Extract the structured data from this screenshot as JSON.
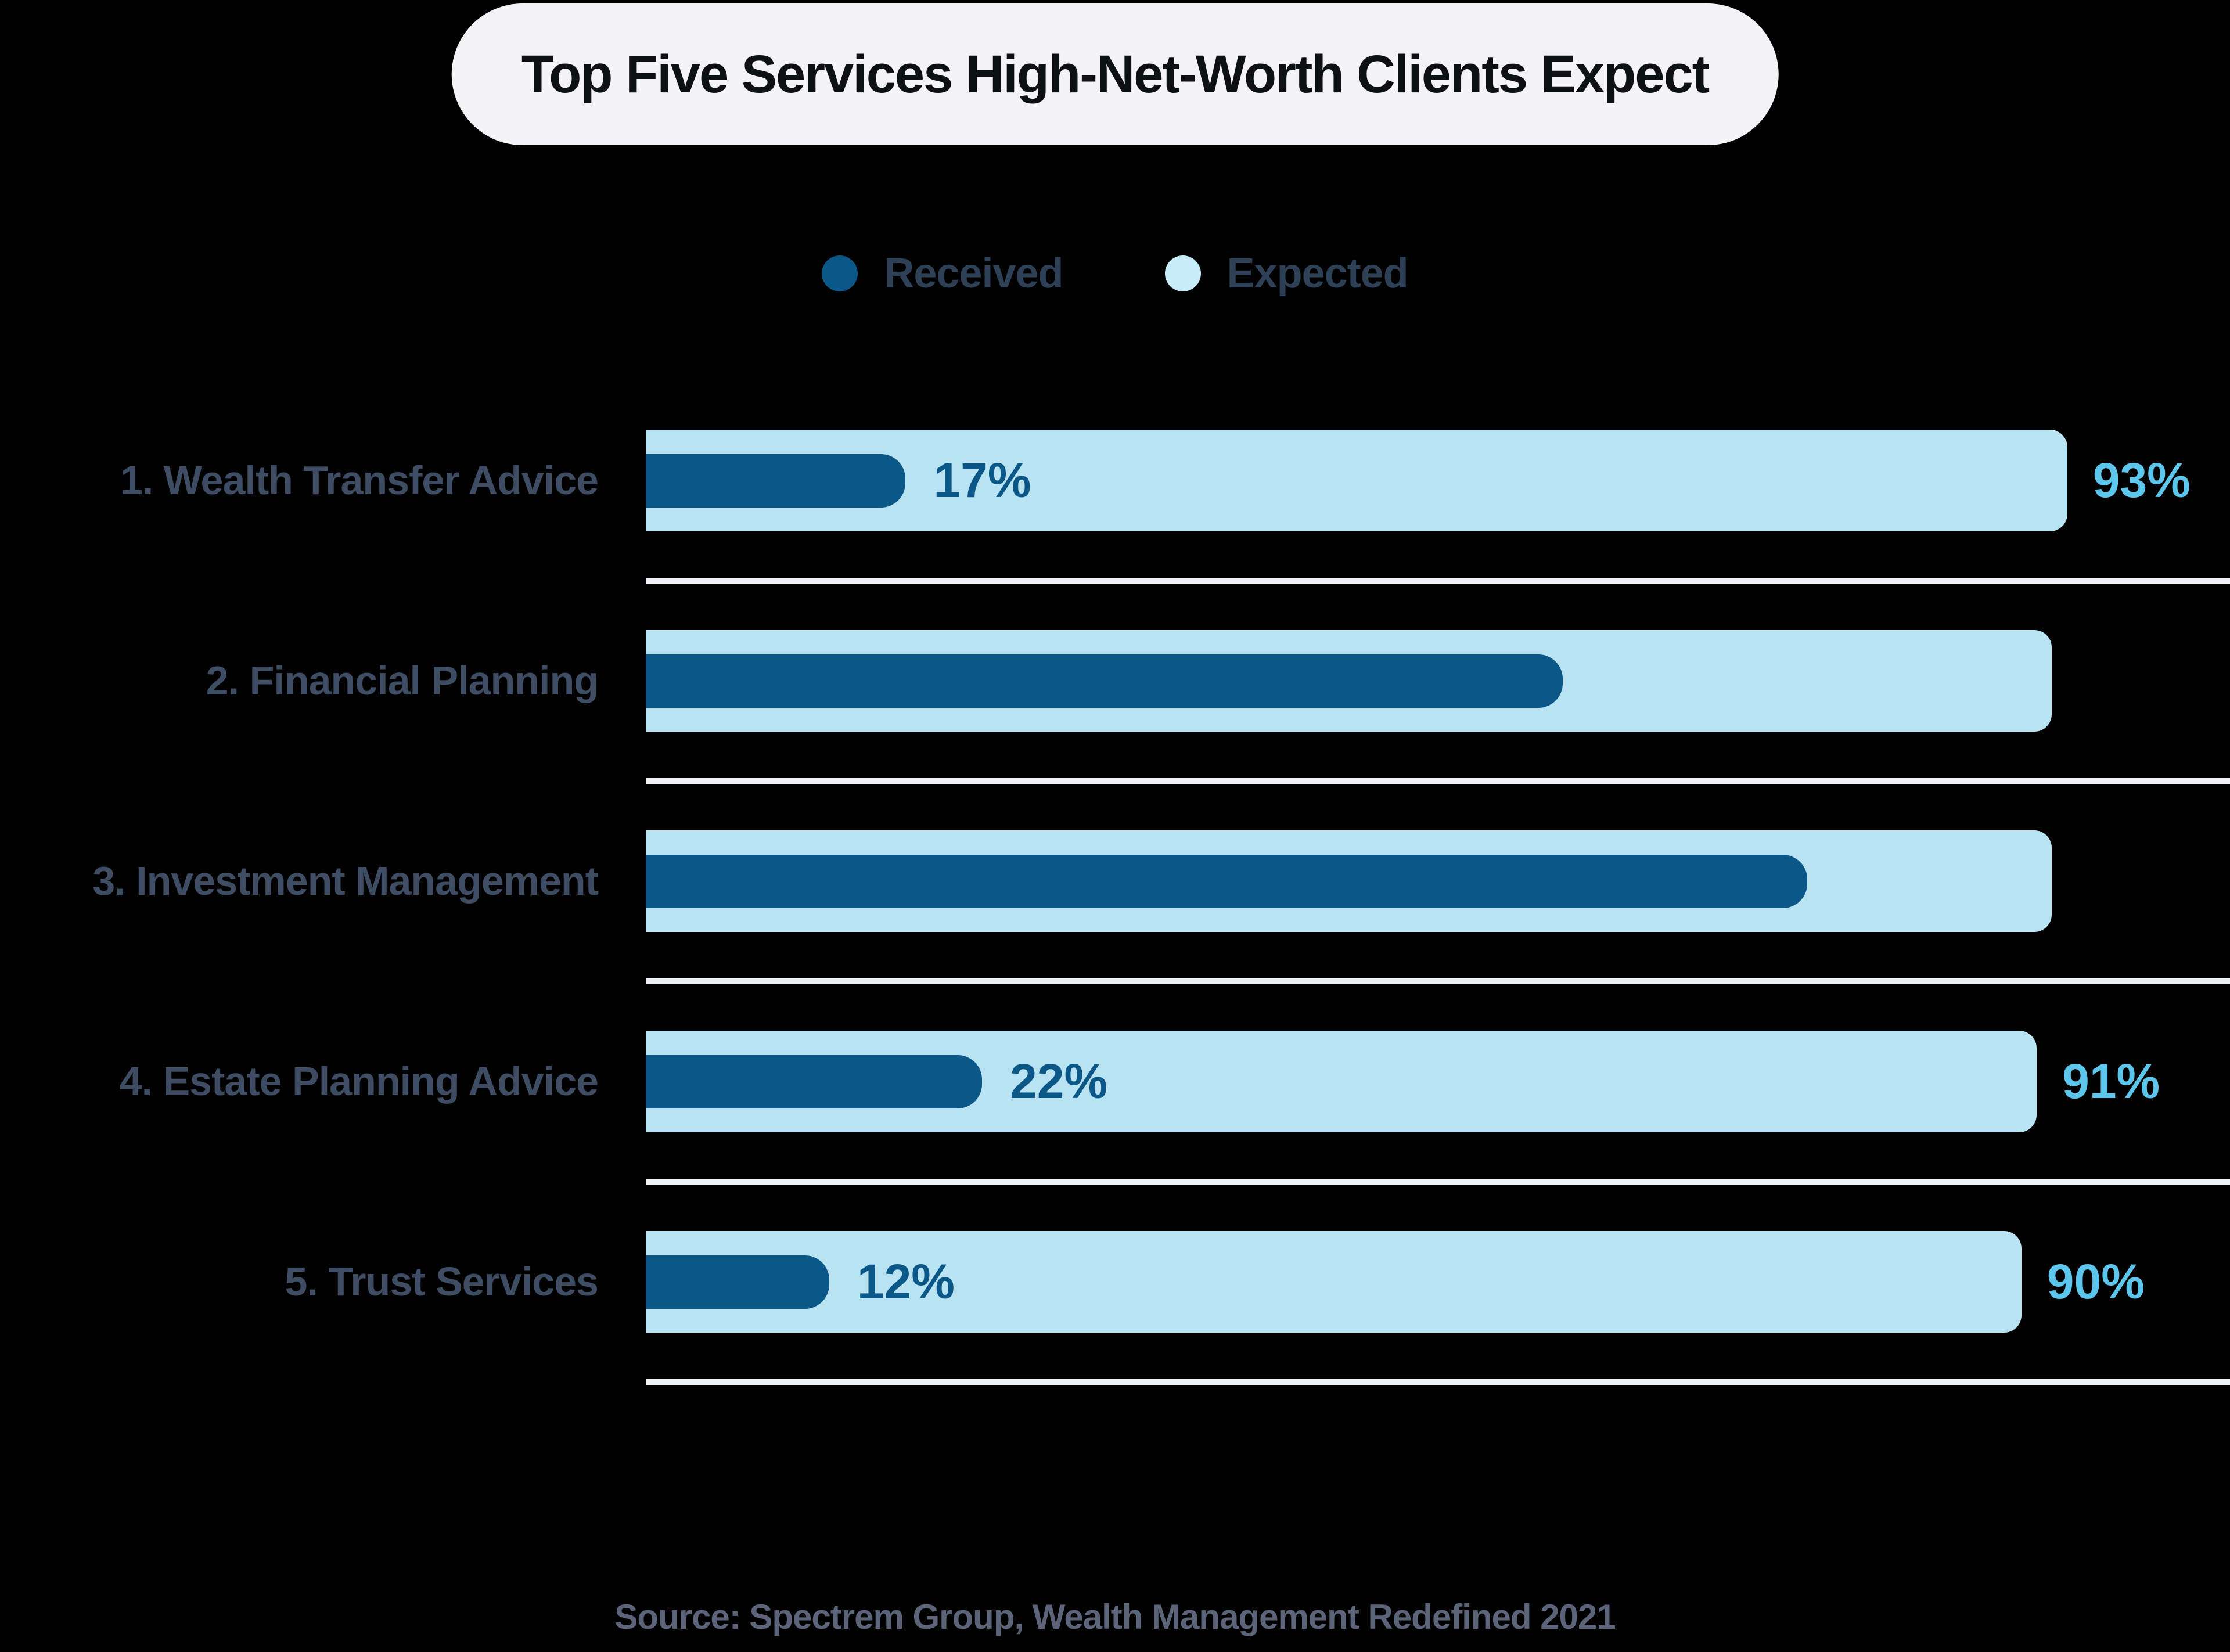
{
  "title": {
    "text": "Top Five Services High-Net-Worth Clients Expect"
  },
  "legend": {
    "items": [
      {
        "label": "Received",
        "color": "#0b5787"
      },
      {
        "label": "Expected",
        "color": "#c8ecf9"
      }
    ]
  },
  "source": {
    "text": "Source: Spectrem Group, Wealth Management Redefined 2021"
  },
  "colors": {
    "background": "#000000",
    "title_pill_bg": "#f4f4f6",
    "title_text": "#0f1013",
    "received_bar": "#0b5787",
    "expected_bar": "#b9e3f3",
    "expected_legend_dot": "#c8ecf9",
    "received_value_text": "#0b5787",
    "expected_value_text": "#5cc6ec",
    "row_label_text": "#3e4d63",
    "legend_text": "#2e4056",
    "separator": "#eff1f6",
    "source_text": "#5b6478"
  },
  "chart_data": {
    "type": "bar",
    "orientation": "horizontal",
    "title": "Top Five Services High-Net-Worth Clients Expect",
    "categories": [
      "1. Wealth Transfer Advice",
      "2. Financial Planning",
      "3. Investment Management",
      "4. Estate Planning Advice",
      "5. Trust Services"
    ],
    "series": [
      {
        "name": "Received",
        "values": [
          17,
          60,
          76,
          22,
          12
        ],
        "labels": [
          "17%",
          null,
          null,
          "22%",
          "12%"
        ]
      },
      {
        "name": "Expected",
        "values": [
          93,
          92,
          92,
          91,
          90
        ],
        "labels": [
          "93%",
          null,
          null,
          "91%",
          "90%"
        ]
      }
    ],
    "value_unit": "%",
    "xlim": [
      0,
      100
    ],
    "grid": false,
    "legend_position": "top",
    "note": "Bars for rows 2 and 3 carry no printed value labels; their values are estimated from bar lengths."
  }
}
